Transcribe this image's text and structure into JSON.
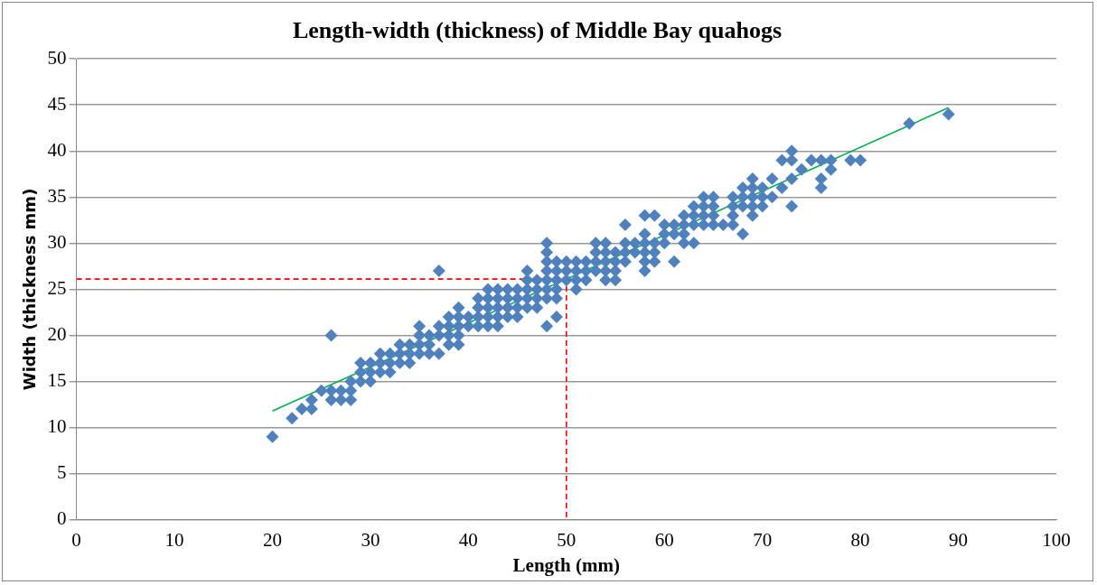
{
  "chart_data": {
    "type": "scatter",
    "title": "Length-width (thickness) of Middle Bay quahogs",
    "xlabel": "Length (mm)",
    "ylabel": "Width (thickness mm)",
    "xlim": [
      0,
      100
    ],
    "xticks": [
      0,
      10,
      20,
      30,
      40,
      50,
      60,
      70,
      80,
      90,
      100
    ],
    "ylim": [
      0,
      50
    ],
    "yticks": [
      0,
      5,
      10,
      15,
      20,
      25,
      30,
      35,
      40,
      45,
      50
    ],
    "grid": "y",
    "legend": false,
    "marker": "diamond",
    "series": [
      {
        "color": "#4f81bd",
        "x": [
          20,
          22,
          23,
          24,
          24,
          25,
          26,
          26,
          26,
          27,
          27,
          28,
          28,
          28,
          29,
          29,
          29,
          30,
          30,
          30,
          31,
          31,
          31,
          32,
          32,
          32,
          33,
          33,
          33,
          34,
          34,
          34,
          35,
          35,
          35,
          35,
          36,
          36,
          36,
          37,
          37,
          37,
          37,
          38,
          38,
          38,
          38,
          39,
          39,
          39,
          39,
          39,
          40,
          40,
          41,
          41,
          41,
          41,
          42,
          42,
          42,
          42,
          42,
          43,
          43,
          43,
          43,
          43,
          44,
          44,
          44,
          44,
          45,
          45,
          45,
          45,
          46,
          46,
          46,
          46,
          46,
          47,
          47,
          47,
          47,
          48,
          48,
          48,
          48,
          48,
          48,
          48,
          48,
          49,
          49,
          49,
          49,
          49,
          49,
          50,
          50,
          50,
          51,
          51,
          51,
          51,
          52,
          52,
          52,
          53,
          53,
          53,
          53,
          54,
          54,
          54,
          54,
          54,
          55,
          55,
          55,
          55,
          56,
          56,
          56,
          56,
          57,
          57,
          58,
          58,
          58,
          58,
          58,
          58,
          59,
          59,
          59,
          59,
          60,
          60,
          60,
          61,
          61,
          61,
          62,
          62,
          62,
          62,
          63,
          63,
          63,
          63,
          64,
          64,
          64,
          64,
          65,
          65,
          65,
          65,
          66,
          67,
          67,
          67,
          67,
          68,
          68,
          68,
          68,
          69,
          69,
          69,
          69,
          69,
          70,
          70,
          70,
          71,
          71,
          72,
          72,
          73,
          73,
          73,
          73,
          74,
          75,
          76,
          76,
          76,
          77,
          77,
          79,
          80,
          85,
          89
        ],
        "values": [
          9,
          11,
          12,
          12,
          13,
          14,
          13,
          14,
          20,
          13,
          14,
          13,
          14,
          15,
          15,
          16,
          17,
          15,
          16,
          17,
          16,
          17,
          18,
          16,
          17,
          18,
          17,
          18,
          19,
          17,
          18,
          19,
          18,
          19,
          20,
          21,
          18,
          19,
          20,
          18,
          20,
          21,
          27,
          19,
          20,
          21,
          22,
          19,
          20,
          21,
          22,
          23,
          21,
          22,
          21,
          22,
          23,
          24,
          21,
          22,
          23,
          24,
          25,
          21,
          22,
          23,
          24,
          25,
          22,
          23,
          24,
          25,
          22,
          23,
          24,
          25,
          23,
          24,
          25,
          26,
          27,
          23,
          24,
          25,
          26,
          21,
          24,
          25,
          26,
          27,
          28,
          29,
          30,
          22,
          24,
          25,
          26,
          27,
          28,
          26,
          27,
          28,
          25,
          26,
          27,
          28,
          26,
          27,
          28,
          27,
          28,
          29,
          30,
          26,
          27,
          28,
          29,
          30,
          26,
          27,
          28,
          29,
          28,
          29,
          30,
          32,
          29,
          30,
          27,
          28,
          29,
          30,
          31,
          33,
          28,
          29,
          30,
          33,
          30,
          31,
          32,
          28,
          31,
          32,
          30,
          31,
          32,
          33,
          30,
          32,
          33,
          34,
          32,
          33,
          34,
          35,
          32,
          33,
          34,
          35,
          32,
          32,
          33,
          34,
          35,
          31,
          34,
          35,
          36,
          33,
          34,
          35,
          36,
          37,
          34,
          35,
          36,
          35,
          37,
          36,
          39,
          34,
          37,
          39,
          40,
          38,
          39,
          36,
          37,
          39,
          38,
          39,
          39,
          39,
          43,
          44
        ]
      },
      {
        "type": "line",
        "color": "#00b050",
        "marker": "none",
        "line_style": "solid",
        "x": [
          20,
          89
        ],
        "values": [
          11.8,
          44.7
        ]
      },
      {
        "type": "line",
        "color": "#ff0000",
        "marker": "none",
        "line_style": "dashed",
        "x": [
          0,
          50,
          50
        ],
        "values": [
          26.1,
          26.1,
          0
        ]
      }
    ]
  }
}
